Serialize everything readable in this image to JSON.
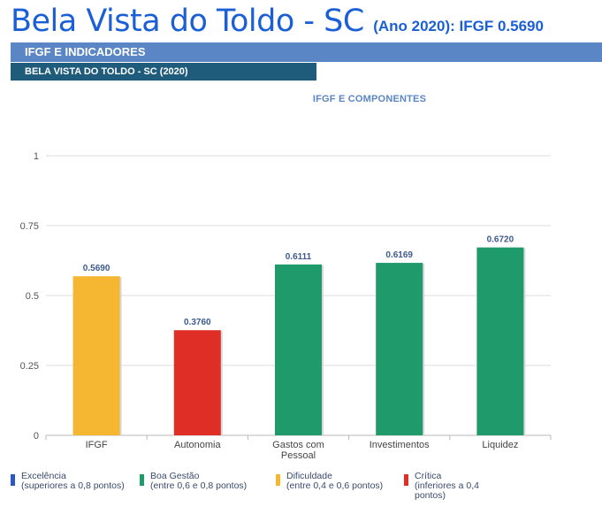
{
  "header": {
    "title": "Bela Vista do Toldo - SC",
    "subtitle": "(Ano 2020): IFGF  0.5690",
    "band_primary": "IFGF E INDICADORES",
    "band_secondary": "BELA VISTA DO TOLDO - SC (2020)"
  },
  "chart_data": {
    "type": "bar",
    "title": "IFGF E COMPONENTES",
    "categories": [
      "IFGF",
      "Autonomia",
      "Gastos com Pessoal",
      "Investimentos",
      "Liquidez"
    ],
    "category_lines": [
      [
        "IFGF"
      ],
      [
        "Autonomia"
      ],
      [
        "Gastos com",
        "Pessoal"
      ],
      [
        "Investimentos"
      ],
      [
        "Liquidez"
      ]
    ],
    "values": [
      0.569,
      0.376,
      0.6111,
      0.6169,
      0.672
    ],
    "data_labels": [
      "0.5690",
      "0.3760",
      "0.6111",
      "0.6169",
      "0.6720"
    ],
    "bar_colors": [
      "#f5b731",
      "#df2e26",
      "#1f9a6b",
      "#1f9a6b",
      "#1f9a6b"
    ],
    "ylim": [
      0,
      1
    ],
    "yticks": [
      0,
      0.25,
      0.5,
      0.75,
      1
    ],
    "ytick_labels": [
      "0",
      "0.25",
      "0.5",
      "0.75",
      "1"
    ],
    "grid": true,
    "legend_position": "bottom"
  },
  "legend": [
    {
      "label": "Excelência",
      "detail": "(superiores a 0,8 pontos)",
      "color": "#2a56c6"
    },
    {
      "label": "Boa Gestão",
      "detail": "(entre 0,6 e 0,8 pontos)",
      "color": "#1f9a6b"
    },
    {
      "label": "Dificuldade",
      "detail": "(entre 0,4 e 0,6 pontos)",
      "color": "#f5b731"
    },
    {
      "label": "Crítica",
      "detail": "(inferiores a 0,4 pontos)",
      "color": "#df2e26"
    }
  ]
}
